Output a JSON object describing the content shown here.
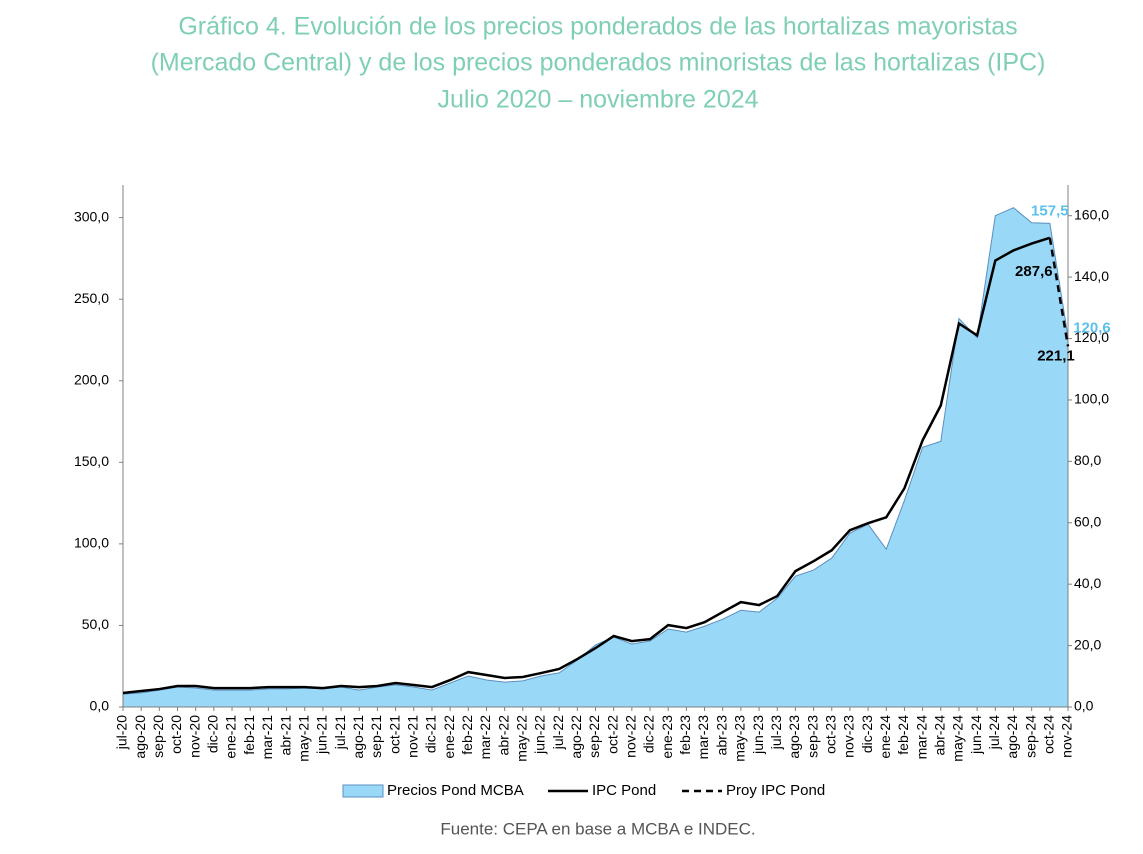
{
  "chart_data": {
    "type": "area-line",
    "title": [
      "Gráfico 4. Evolución de los precios ponderados de las hortalizas mayoristas",
      "(Mercado Central) y de los precios ponderados minoristas de las hortalizas (IPC)"
    ],
    "subtitle": "Julio 2020 – noviembre 2024",
    "source": "Fuente: CEPA en base a MCBA e INDEC.",
    "categories": [
      "jul-20",
      "ago-20",
      "sep-20",
      "oct-20",
      "nov-20",
      "dic-20",
      "ene-21",
      "feb-21",
      "mar-21",
      "abr-21",
      "may-21",
      "jun-21",
      "jul-21",
      "ago-21",
      "sep-21",
      "oct-21",
      "nov-21",
      "dic-21",
      "ene-22",
      "feb-22",
      "mar-22",
      "abr-22",
      "may-22",
      "jun-22",
      "jul-22",
      "ago-22",
      "sep-22",
      "oct-22",
      "nov-22",
      "dic-22",
      "ene-23",
      "feb-23",
      "mar-23",
      "abr-23",
      "may-23",
      "jun-23",
      "jul-23",
      "ago-23",
      "sep-23",
      "oct-23",
      "nov-23",
      "dic-23",
      "ene-24",
      "feb-24",
      "mar-24",
      "abr-24",
      "may-24",
      "jun-24",
      "jul-24",
      "ago-24",
      "sep-24",
      "oct-24",
      "nov-24"
    ],
    "series": [
      {
        "name": "Precios Pond MCBA",
        "kind": "area",
        "axis": "y2",
        "color": "#99d9f7",
        "line_color": "#5a8fc0",
        "label_color": "#5bc0eb",
        "values": [
          4.2,
          4.6,
          5.5,
          6.5,
          6.2,
          5.5,
          5.5,
          5.5,
          5.9,
          5.9,
          6.2,
          5.9,
          6.5,
          5.5,
          6.5,
          7.2,
          6.5,
          5.5,
          7.8,
          10.1,
          8.8,
          8.1,
          8.5,
          10.1,
          11.1,
          15.3,
          20.2,
          22.8,
          20.5,
          21.5,
          25.4,
          24.4,
          26.3,
          28.6,
          31.5,
          30.9,
          35.4,
          42.6,
          44.6,
          48.5,
          56.6,
          59.5,
          51.4,
          67.3,
          84.6,
          86.5,
          126.5,
          120.3,
          160,
          162.6,
          157.7,
          157.5,
          120.6
        ],
        "value_labels": [
          null,
          null,
          null,
          null,
          null,
          null,
          null,
          null,
          null,
          null,
          null,
          null,
          null,
          null,
          null,
          null,
          null,
          null,
          null,
          null,
          null,
          null,
          null,
          null,
          null,
          null,
          null,
          null,
          null,
          null,
          null,
          null,
          null,
          null,
          null,
          null,
          null,
          null,
          null,
          null,
          null,
          null,
          null,
          null,
          null,
          null,
          null,
          null,
          null,
          null,
          null,
          "157,5",
          "120,6"
        ]
      },
      {
        "name": "IPC Pond",
        "kind": "line",
        "color": "#000000",
        "values": [
          8.6,
          9.8,
          11,
          12.9,
          12.9,
          11.6,
          11.6,
          11.6,
          12.2,
          12.2,
          12.2,
          11.6,
          12.9,
          12.2,
          12.9,
          14.7,
          13.5,
          12.2,
          16.5,
          21.4,
          19.6,
          17.8,
          18.4,
          20.8,
          23.3,
          29.4,
          36.1,
          43.5,
          40.4,
          41.6,
          50.2,
          48.4,
          52,
          58.2,
          64.3,
          62.5,
          68,
          83.3,
          89.4,
          96.1,
          108.4,
          112.7,
          116.3,
          134.1,
          163.5,
          184.9,
          235.1,
          227.8,
          273.7,
          279.9,
          284.1,
          287.6,
          null
        ],
        "value_labels": [
          null,
          null,
          null,
          null,
          null,
          null,
          null,
          null,
          null,
          null,
          null,
          null,
          null,
          null,
          null,
          null,
          null,
          null,
          null,
          null,
          null,
          null,
          null,
          null,
          null,
          null,
          null,
          null,
          null,
          null,
          null,
          null,
          null,
          null,
          null,
          null,
          null,
          null,
          null,
          null,
          null,
          null,
          null,
          null,
          null,
          null,
          null,
          null,
          null,
          null,
          null,
          "287,6",
          null
        ]
      },
      {
        "name": "Proy IPC Pond",
        "kind": "dashed",
        "color": "#000000",
        "values": [
          null,
          null,
          null,
          null,
          null,
          null,
          null,
          null,
          null,
          null,
          null,
          null,
          null,
          null,
          null,
          null,
          null,
          null,
          null,
          null,
          null,
          null,
          null,
          null,
          null,
          null,
          null,
          null,
          null,
          null,
          null,
          null,
          null,
          null,
          null,
          null,
          null,
          null,
          null,
          null,
          null,
          null,
          null,
          null,
          null,
          null,
          null,
          null,
          null,
          null,
          null,
          287.6,
          221.1
        ],
        "value_labels": [
          null,
          null,
          null,
          null,
          null,
          null,
          null,
          null,
          null,
          null,
          null,
          null,
          null,
          null,
          null,
          null,
          null,
          null,
          null,
          null,
          null,
          null,
          null,
          null,
          null,
          null,
          null,
          null,
          null,
          null,
          null,
          null,
          null,
          null,
          null,
          null,
          null,
          null,
          null,
          null,
          null,
          null,
          null,
          null,
          null,
          null,
          null,
          null,
          null,
          null,
          null,
          null,
          "221,1"
        ]
      }
    ],
    "ylim": [
      0,
      320
    ],
    "yticks": [
      {
        "value": 0,
        "label": "0,0"
      },
      {
        "value": 50,
        "label": "50,0"
      },
      {
        "value": 100,
        "label": "100,0"
      },
      {
        "value": 150,
        "label": "150,0"
      },
      {
        "value": 200,
        "label": "200,0"
      },
      {
        "value": 250,
        "label": "250,0"
      },
      {
        "value": 300,
        "label": "300,0"
      }
    ],
    "y2lim": [
      0,
      170
    ],
    "y2ticks": [
      {
        "value": 0,
        "label": "0,0"
      },
      {
        "value": 20,
        "label": "20,0"
      },
      {
        "value": 40,
        "label": "40,0"
      },
      {
        "value": 60,
        "label": "60,0"
      },
      {
        "value": 80,
        "label": "80,0"
      },
      {
        "value": 100,
        "label": "100,0"
      },
      {
        "value": 120,
        "label": "120,0"
      },
      {
        "value": 140,
        "label": "140,0"
      },
      {
        "value": 160,
        "label": "160,0"
      }
    ],
    "legend": "bottom"
  }
}
